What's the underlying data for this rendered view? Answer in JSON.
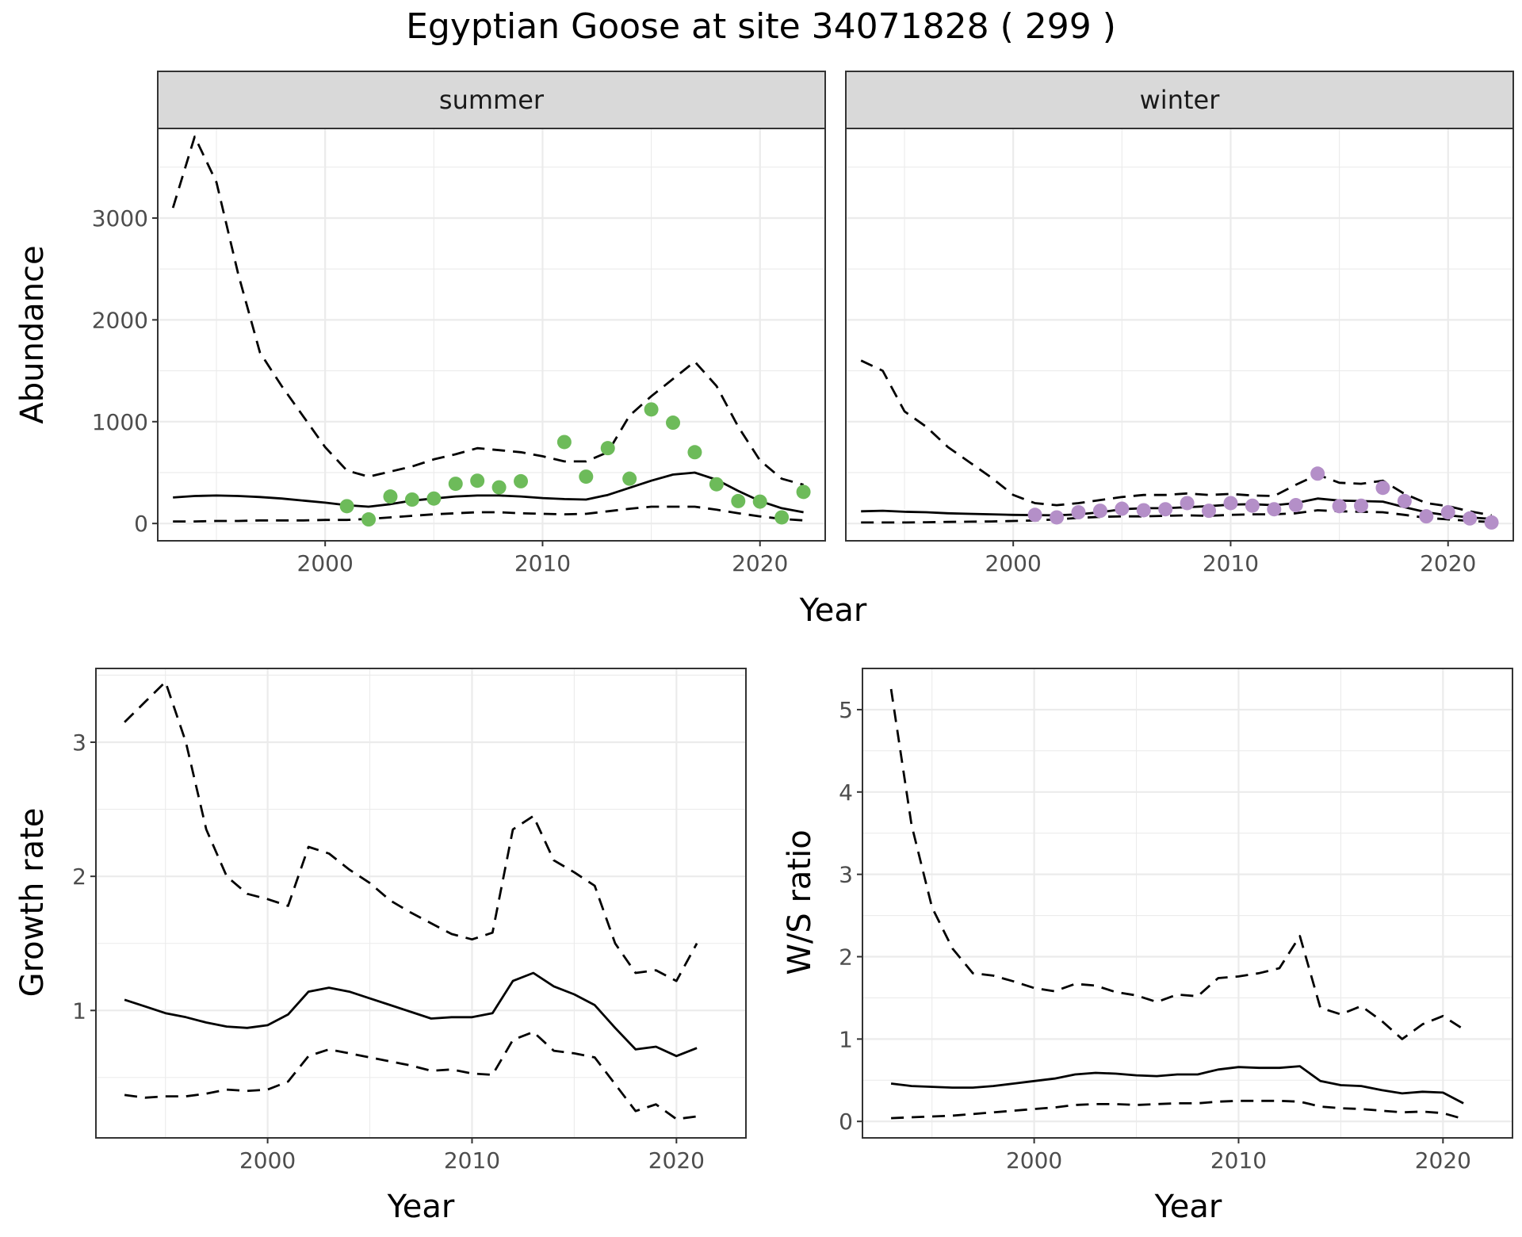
{
  "figure": {
    "title": "Egyptian Goose at site 34071828 ( 299 )"
  },
  "chart_data": [
    {
      "id": "abundance",
      "type": "line",
      "ylabel": "Abundance",
      "xlabel": "Year",
      "xlim": [
        1992.3,
        2023.0
      ],
      "ylim": [
        -170,
        3880
      ],
      "xticks": [
        2000,
        2010,
        2020
      ],
      "yticks": [
        0,
        1000,
        2000,
        3000
      ],
      "grid": true,
      "facets": [
        {
          "label": "summer",
          "point_color": "#6dbb5a",
          "x": [
            1993,
            1994,
            1995,
            1996,
            1997,
            1998,
            1999,
            2000,
            2001,
            2002,
            2003,
            2004,
            2005,
            2006,
            2007,
            2008,
            2009,
            2010,
            2011,
            2012,
            2013,
            2014,
            2015,
            2016,
            2017,
            2018,
            2019,
            2020,
            2021,
            2022
          ],
          "fit": [
            255,
            270,
            275,
            270,
            260,
            245,
            225,
            205,
            180,
            165,
            190,
            225,
            245,
            265,
            275,
            275,
            265,
            250,
            240,
            235,
            280,
            350,
            420,
            480,
            500,
            430,
            320,
            220,
            150,
            110
          ],
          "upper": [
            3100,
            3800,
            3350,
            2450,
            1680,
            1350,
            1050,
            750,
            520,
            460,
            510,
            560,
            630,
            680,
            740,
            720,
            700,
            660,
            610,
            610,
            700,
            1060,
            1250,
            1420,
            1590,
            1350,
            950,
            620,
            440,
            380
          ],
          "lower": [
            20,
            20,
            25,
            25,
            30,
            30,
            30,
            35,
            35,
            45,
            60,
            75,
            90,
            100,
            110,
            110,
            100,
            95,
            90,
            95,
            120,
            145,
            165,
            165,
            165,
            135,
            100,
            70,
            45,
            30
          ],
          "points": [
            {
              "x": 2001,
              "y": 170
            },
            {
              "x": 2002,
              "y": 40
            },
            {
              "x": 2003,
              "y": 265
            },
            {
              "x": 2004,
              "y": 235
            },
            {
              "x": 2005,
              "y": 245
            },
            {
              "x": 2006,
              "y": 390
            },
            {
              "x": 2007,
              "y": 420
            },
            {
              "x": 2008,
              "y": 355
            },
            {
              "x": 2009,
              "y": 415
            },
            {
              "x": 2011,
              "y": 800
            },
            {
              "x": 2012,
              "y": 460
            },
            {
              "x": 2013,
              "y": 740
            },
            {
              "x": 2014,
              "y": 440
            },
            {
              "x": 2015,
              "y": 1120
            },
            {
              "x": 2016,
              "y": 990
            },
            {
              "x": 2017,
              "y": 700
            },
            {
              "x": 2018,
              "y": 385
            },
            {
              "x": 2019,
              "y": 220
            },
            {
              "x": 2020,
              "y": 215
            },
            {
              "x": 2021,
              "y": 60
            },
            {
              "x": 2022,
              "y": 310
            }
          ]
        },
        {
          "label": "winter",
          "point_color": "#b48fc8",
          "x": [
            1993,
            1994,
            1995,
            1996,
            1997,
            1998,
            1999,
            2000,
            2001,
            2002,
            2003,
            2004,
            2005,
            2006,
            2007,
            2008,
            2009,
            2010,
            2011,
            2012,
            2013,
            2014,
            2015,
            2016,
            2017,
            2018,
            2019,
            2020,
            2021,
            2022
          ],
          "fit": [
            120,
            125,
            115,
            110,
            100,
            95,
            90,
            85,
            82,
            80,
            90,
            110,
            140,
            150,
            150,
            160,
            170,
            185,
            190,
            180,
            200,
            245,
            225,
            220,
            215,
            160,
            110,
            80,
            60,
            45
          ],
          "upper": [
            1600,
            1500,
            1100,
            950,
            750,
            600,
            450,
            280,
            200,
            180,
            200,
            230,
            260,
            280,
            280,
            295,
            280,
            290,
            275,
            270,
            380,
            480,
            400,
            390,
            420,
            290,
            200,
            170,
            120,
            80
          ],
          "lower": [
            10,
            10,
            10,
            12,
            15,
            18,
            20,
            25,
            30,
            40,
            55,
            65,
            70,
            70,
            75,
            80,
            75,
            85,
            90,
            90,
            100,
            130,
            120,
            115,
            110,
            85,
            55,
            40,
            25,
            15
          ],
          "points": [
            {
              "x": 2001,
              "y": 85
            },
            {
              "x": 2002,
              "y": 60
            },
            {
              "x": 2003,
              "y": 110
            },
            {
              "x": 2004,
              "y": 125
            },
            {
              "x": 2005,
              "y": 145
            },
            {
              "x": 2006,
              "y": 130
            },
            {
              "x": 2007,
              "y": 140
            },
            {
              "x": 2008,
              "y": 200
            },
            {
              "x": 2009,
              "y": 125
            },
            {
              "x": 2010,
              "y": 200
            },
            {
              "x": 2011,
              "y": 175
            },
            {
              "x": 2012,
              "y": 140
            },
            {
              "x": 2013,
              "y": 180
            },
            {
              "x": 2014,
              "y": 490
            },
            {
              "x": 2015,
              "y": 170
            },
            {
              "x": 2016,
              "y": 175
            },
            {
              "x": 2017,
              "y": 350
            },
            {
              "x": 2018,
              "y": 220
            },
            {
              "x": 2019,
              "y": 70
            },
            {
              "x": 2020,
              "y": 110
            },
            {
              "x": 2021,
              "y": 50
            },
            {
              "x": 2022,
              "y": 10
            }
          ]
        }
      ]
    },
    {
      "id": "growth",
      "type": "line",
      "ylabel": "Growth rate",
      "xlabel": "Year",
      "xlim": [
        1991.6,
        2023.4
      ],
      "ylim": [
        0.05,
        3.55
      ],
      "xticks": [
        2000,
        2010,
        2020
      ],
      "yticks": [
        1,
        2,
        3
      ],
      "grid": true,
      "x": [
        1993,
        1994,
        1995,
        1996,
        1997,
        1998,
        1999,
        2000,
        2001,
        2002,
        2003,
        2004,
        2005,
        2006,
        2007,
        2008,
        2009,
        2010,
        2011,
        2012,
        2013,
        2014,
        2015,
        2016,
        2017,
        2018,
        2019,
        2020,
        2021
      ],
      "fit": [
        1.08,
        1.03,
        0.98,
        0.95,
        0.91,
        0.88,
        0.87,
        0.89,
        0.97,
        1.14,
        1.17,
        1.14,
        1.09,
        1.04,
        0.99,
        0.94,
        0.95,
        0.95,
        0.98,
        1.22,
        1.28,
        1.18,
        1.12,
        1.04,
        0.87,
        0.71,
        0.73,
        0.66,
        0.72
      ],
      "upper": [
        3.15,
        3.3,
        3.45,
        3.0,
        2.35,
        2.0,
        1.87,
        1.83,
        1.78,
        2.22,
        2.17,
        2.05,
        1.95,
        1.82,
        1.73,
        1.65,
        1.57,
        1.53,
        1.58,
        2.35,
        2.45,
        2.12,
        2.03,
        1.93,
        1.5,
        1.28,
        1.3,
        1.22,
        1.5
      ],
      "lower": [
        0.37,
        0.35,
        0.36,
        0.36,
        0.38,
        0.41,
        0.4,
        0.41,
        0.47,
        0.66,
        0.71,
        0.68,
        0.65,
        0.62,
        0.59,
        0.55,
        0.56,
        0.53,
        0.52,
        0.78,
        0.84,
        0.7,
        0.68,
        0.65,
        0.45,
        0.25,
        0.3,
        0.19,
        0.21
      ]
    },
    {
      "id": "ratio",
      "type": "line",
      "ylabel": "W/S ratio",
      "xlabel": "Year",
      "xlim": [
        1991.6,
        2023.4
      ],
      "ylim": [
        -0.2,
        5.5
      ],
      "xticks": [
        2000,
        2010,
        2020
      ],
      "yticks": [
        0,
        1,
        2,
        3,
        4,
        5
      ],
      "grid": true,
      "x": [
        1993,
        1994,
        1995,
        1996,
        1997,
        1998,
        1999,
        2000,
        2001,
        2002,
        2003,
        2004,
        2005,
        2006,
        2007,
        2008,
        2009,
        2010,
        2011,
        2012,
        2013,
        2014,
        2015,
        2016,
        2017,
        2018,
        2019,
        2020,
        2021
      ],
      "fit": [
        0.46,
        0.43,
        0.42,
        0.41,
        0.41,
        0.43,
        0.46,
        0.49,
        0.52,
        0.57,
        0.59,
        0.58,
        0.56,
        0.55,
        0.57,
        0.57,
        0.63,
        0.66,
        0.65,
        0.65,
        0.67,
        0.49,
        0.44,
        0.43,
        0.38,
        0.34,
        0.36,
        0.35,
        0.22
      ],
      "upper": [
        5.25,
        3.6,
        2.6,
        2.1,
        1.8,
        1.77,
        1.7,
        1.62,
        1.58,
        1.67,
        1.65,
        1.57,
        1.53,
        1.45,
        1.54,
        1.52,
        1.74,
        1.76,
        1.8,
        1.86,
        2.25,
        1.38,
        1.3,
        1.4,
        1.22,
        1.0,
        1.18,
        1.28,
        1.12
      ],
      "lower": [
        0.04,
        0.05,
        0.06,
        0.07,
        0.09,
        0.11,
        0.13,
        0.15,
        0.17,
        0.2,
        0.21,
        0.21,
        0.2,
        0.21,
        0.22,
        0.22,
        0.24,
        0.25,
        0.25,
        0.25,
        0.24,
        0.18,
        0.16,
        0.15,
        0.13,
        0.11,
        0.12,
        0.1,
        0.03
      ]
    }
  ]
}
